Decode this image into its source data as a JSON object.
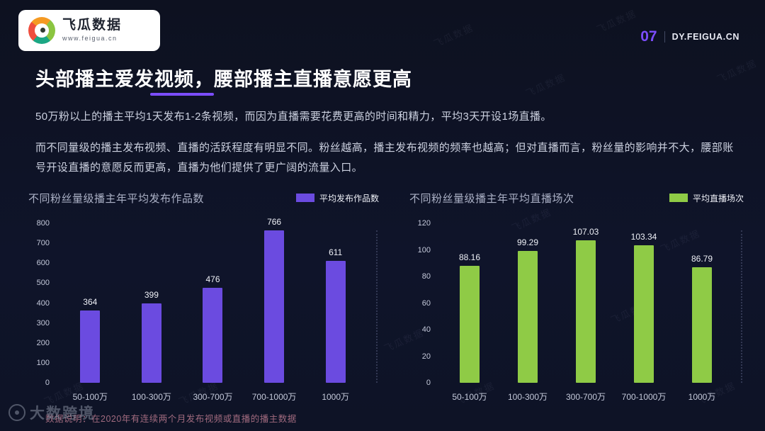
{
  "header": {
    "brand": "飞瓜数据",
    "brand_url": "www.feigua.cn",
    "page_number": "07",
    "site": "DY.FEIGUA.CN"
  },
  "title": "头部播主爱发视频，腰部播主直播意愿更高",
  "paragraphs": [
    "50万粉以上的播主平均1天发布1-2条视频，而因为直播需要花费更高的时间和精力，平均3天开设1场直播。",
    "而不同量级的播主发布视频、直播的活跃程度有明显不同。粉丝越高，播主发布视频的频率也越高；但对直播而言，粉丝量的影响并不大，腰部账号开设直播的意愿反而更高，直播为他们提供了更广阔的流量入口。"
  ],
  "chart_data": [
    {
      "type": "bar",
      "title": "不同粉丝量级播主年平均发布作品数",
      "legend": "平均发布作品数",
      "categories": [
        "50-100万",
        "100-300万",
        "300-700万",
        "700-1000万",
        "1000万"
      ],
      "values": [
        364,
        399,
        476,
        766,
        611
      ],
      "ylim": [
        0,
        800
      ],
      "yticks": [
        0,
        100,
        200,
        300,
        400,
        500,
        600,
        700,
        800
      ],
      "bar_color": "#6b4be0",
      "grid": false,
      "legend_position": "top-right"
    },
    {
      "type": "bar",
      "title": "不同粉丝量级播主年平均直播场次",
      "legend": "平均直播场次",
      "categories": [
        "50-100万",
        "100-300万",
        "300-700万",
        "700-1000万",
        "1000万"
      ],
      "values": [
        88.16,
        99.29,
        107.03,
        103.34,
        86.79
      ],
      "ylim": [
        0,
        120
      ],
      "yticks": [
        0,
        20,
        40,
        60,
        80,
        100,
        120
      ],
      "bar_color": "#8fcb46",
      "grid": false,
      "legend_position": "top-right"
    }
  ],
  "footnote": "数据说明：在2020年有连续两个月发布视频或直播的播主数据",
  "watermark": {
    "text": "大数跨境",
    "brand_repeat": "飞瓜数据"
  },
  "colors": {
    "accent": "#7c4dff",
    "bar_purple": "#6b4be0",
    "bar_green": "#8fcb46",
    "background": "#0e1322"
  }
}
